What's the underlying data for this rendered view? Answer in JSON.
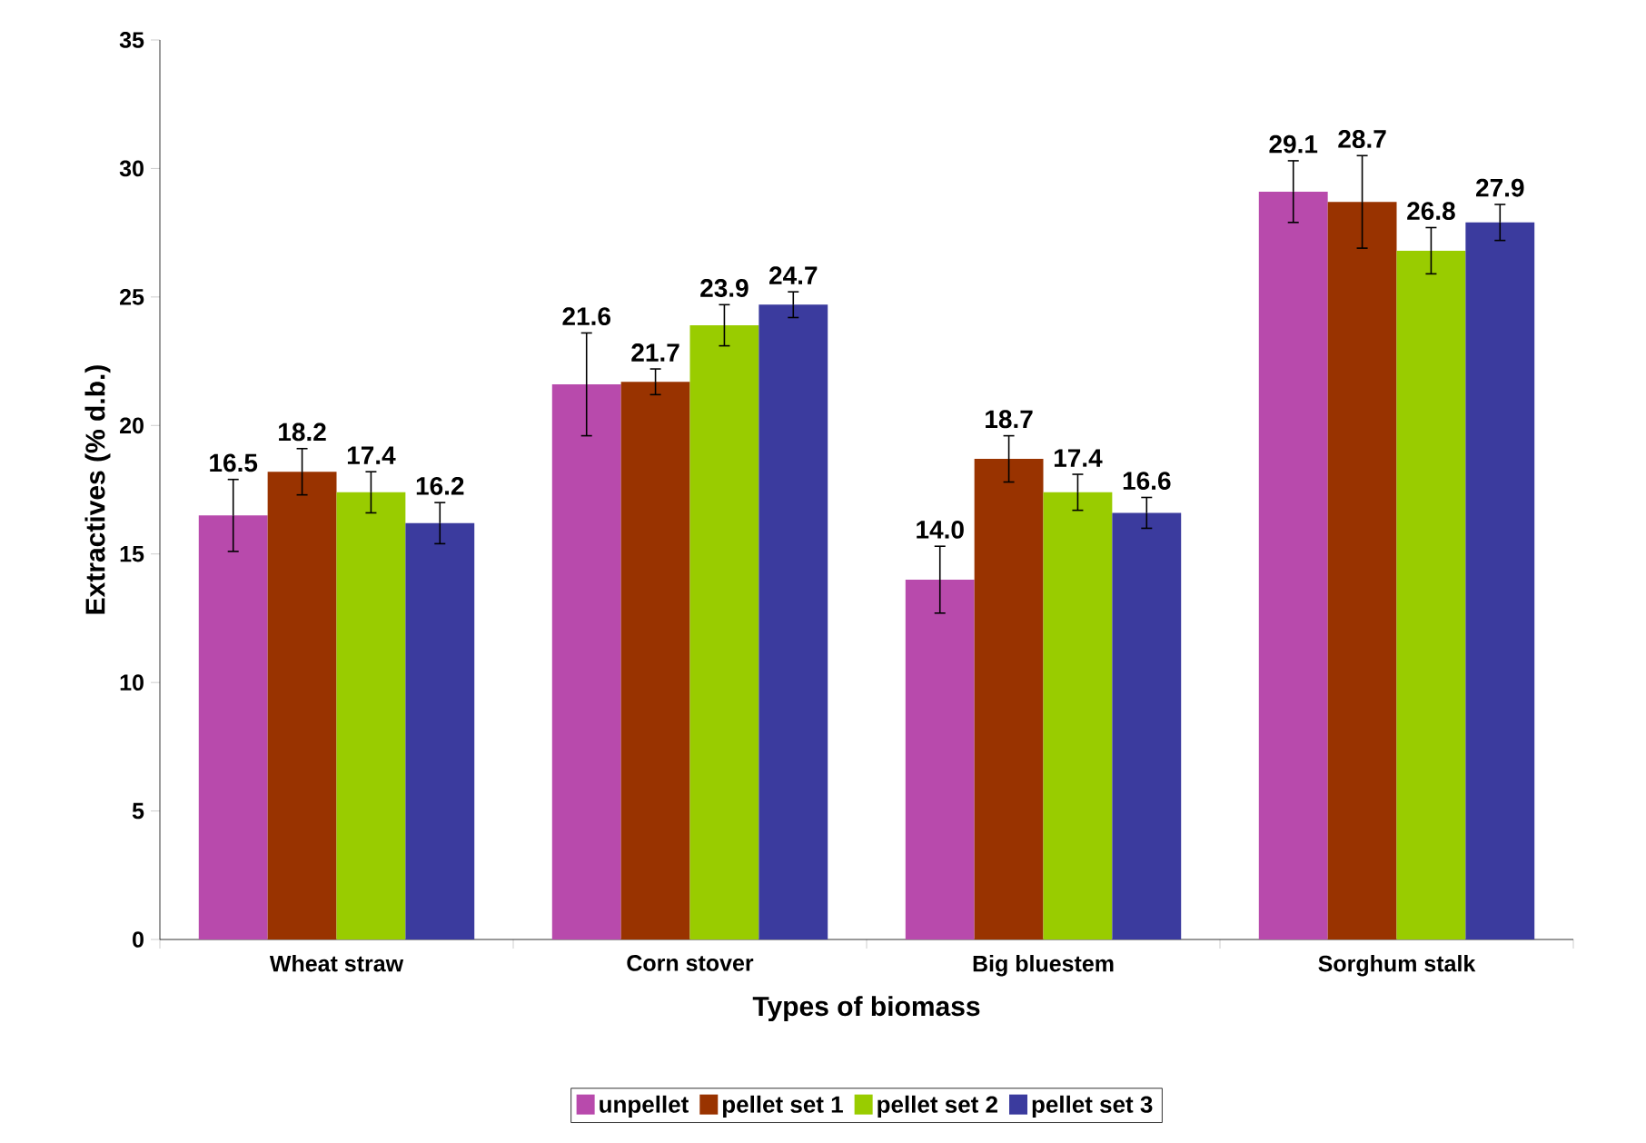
{
  "chart_data": {
    "type": "bar",
    "xlabel": "Types of biomass",
    "ylabel": "Extractives (% d.b.)",
    "categories": [
      "Wheat straw",
      "Corn stover",
      "Big bluestem",
      "Sorghum stalk"
    ],
    "series": [
      {
        "name": "unpellet",
        "color": "#b84aac",
        "values": [
          16.5,
          21.6,
          14.0,
          29.1
        ],
        "errors": [
          1.4,
          2.0,
          1.3,
          1.2
        ],
        "value_labels": [
          "16.5",
          "21.6",
          "14.0",
          "29.1"
        ]
      },
      {
        "name": "pellet set 1",
        "color": "#993300",
        "values": [
          18.2,
          21.7,
          18.7,
          28.7
        ],
        "errors": [
          0.9,
          0.5,
          0.9,
          1.8
        ],
        "value_labels": [
          "18.2",
          "21.7",
          "18.7",
          "28.7"
        ]
      },
      {
        "name": "pellet set 2",
        "color": "#99cc00",
        "values": [
          17.4,
          23.9,
          17.4,
          26.8
        ],
        "errors": [
          0.8,
          0.8,
          0.7,
          0.9
        ],
        "value_labels": [
          "17.4",
          "23.9",
          "17.4",
          "26.8"
        ]
      },
      {
        "name": "pellet set 3",
        "color": "#3b3b9e",
        "values": [
          16.2,
          24.7,
          16.6,
          27.9
        ],
        "errors": [
          0.8,
          0.5,
          0.6,
          0.7
        ],
        "value_labels": [
          "16.2",
          "24.7",
          "16.6",
          "27.9"
        ]
      }
    ],
    "ylim": [
      0,
      35
    ],
    "yticks": [
      0,
      5,
      10,
      15,
      20,
      25,
      30,
      35
    ],
    "grid": false,
    "legend": "bottom"
  }
}
